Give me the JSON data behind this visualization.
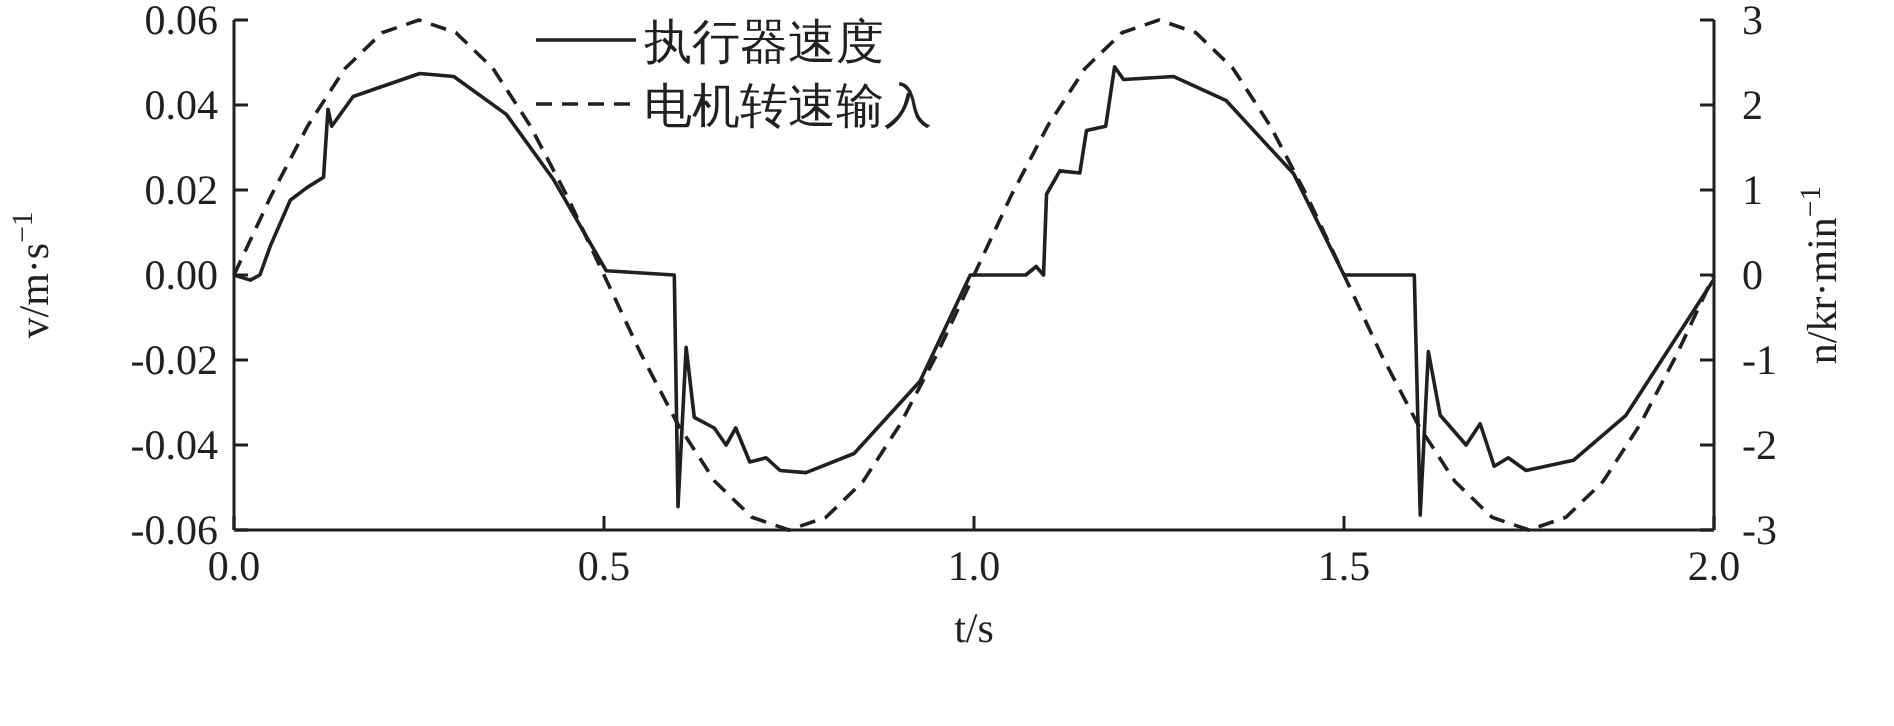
{
  "chart_data": {
    "type": "line",
    "xlabel": "t/s",
    "ylabel": "v/m·s$^{−1}$",
    "y2label": "n/kr·min$^{−1}$",
    "xlim": [
      0,
      2
    ],
    "xticks": [
      {
        "value": 0,
        "label": "0.0"
      },
      {
        "value": 0.5,
        "label": "0.5"
      },
      {
        "value": 1,
        "label": "1.0"
      },
      {
        "value": 1.5,
        "label": "1.5"
      },
      {
        "value": 2,
        "label": "2.0"
      }
    ],
    "ylim": [
      -0.06,
      0.06
    ],
    "yticks": [
      {
        "value": -0.06,
        "label": "-0.06"
      },
      {
        "value": -0.04,
        "label": "-0.04"
      },
      {
        "value": -0.02,
        "label": "-0.02"
      },
      {
        "value": 0,
        "label": "0.00"
      },
      {
        "value": 0.02,
        "label": "0.02"
      },
      {
        "value": 0.04,
        "label": "0.04"
      },
      {
        "value": 0.06,
        "label": "0.06"
      }
    ],
    "y2lim": [
      -3,
      3
    ],
    "y2ticks": [
      -3,
      -2,
      -1,
      0,
      1,
      2,
      3
    ],
    "legend": "top",
    "grid": false,
    "series": [
      {
        "name": "执行器速度",
        "color": "#231f20",
        "line_style": "solid",
        "x": [
          0,
          0.022,
          0.035,
          0.049,
          0.076,
          0.098,
          0.121,
          0.127,
          0.132,
          0.161,
          0.251,
          0.297,
          0.368,
          0.432,
          0.503,
          0.595,
          0.6,
          0.611,
          0.622,
          0.649,
          0.665,
          0.678,
          0.697,
          0.719,
          0.738,
          0.773,
          0.838,
          0.927,
          0.995,
          1.07,
          1.084,
          1.094,
          1.098,
          1.116,
          1.143,
          1.152,
          1.178,
          1.19,
          1.202,
          1.27,
          1.341,
          1.432,
          1.5,
          1.595,
          1.603,
          1.614,
          1.63,
          1.665,
          1.684,
          1.703,
          1.722,
          1.746,
          1.81,
          1.881,
          2.0
        ],
        "values": [
          0,
          -0.0012,
          0,
          0.0068,
          0.0176,
          0.0205,
          0.023,
          0.039,
          0.035,
          0.042,
          0.0474,
          0.0467,
          0.0378,
          0.0224,
          0.001,
          0,
          -0.0545,
          -0.017,
          -0.0335,
          -0.036,
          -0.04,
          -0.036,
          -0.044,
          -0.043,
          -0.046,
          -0.0465,
          -0.042,
          -0.025,
          0,
          0,
          0.002,
          0,
          0.019,
          0.0245,
          0.024,
          0.034,
          0.035,
          0.049,
          0.046,
          0.0467,
          0.041,
          0.0238,
          0,
          0,
          -0.0565,
          -0.018,
          -0.033,
          -0.04,
          -0.035,
          -0.045,
          -0.043,
          -0.046,
          -0.0436,
          -0.033,
          -0.001
        ]
      },
      {
        "name": "电机转速输入",
        "color": "#231f20",
        "line_style": "dashed",
        "axis": "y2",
        "x": [
          0,
          0.05,
          0.1,
          0.15,
          0.2,
          0.25,
          0.3,
          0.35,
          0.4,
          0.45,
          0.5,
          0.55,
          0.6,
          0.65,
          0.7,
          0.75,
          0.8,
          0.85,
          0.9,
          0.95,
          1.0,
          1.05,
          1.1,
          1.15,
          1.2,
          1.25,
          1.3,
          1.35,
          1.4,
          1.45,
          1.5,
          1.55,
          1.6,
          1.65,
          1.7,
          1.75,
          1.8,
          1.85,
          1.9,
          1.95,
          2.0
        ],
        "values": [
          0,
          0.93,
          1.76,
          2.43,
          2.85,
          3,
          2.85,
          2.43,
          1.76,
          0.93,
          0,
          -0.93,
          -1.76,
          -2.43,
          -2.85,
          -3,
          -2.85,
          -2.43,
          -1.76,
          -0.93,
          0,
          0.93,
          1.76,
          2.43,
          2.85,
          3,
          2.85,
          2.43,
          1.76,
          0.93,
          0,
          -0.93,
          -1.76,
          -2.43,
          -2.85,
          -3,
          -2.85,
          -2.43,
          -1.76,
          -0.93,
          0
        ]
      }
    ]
  }
}
